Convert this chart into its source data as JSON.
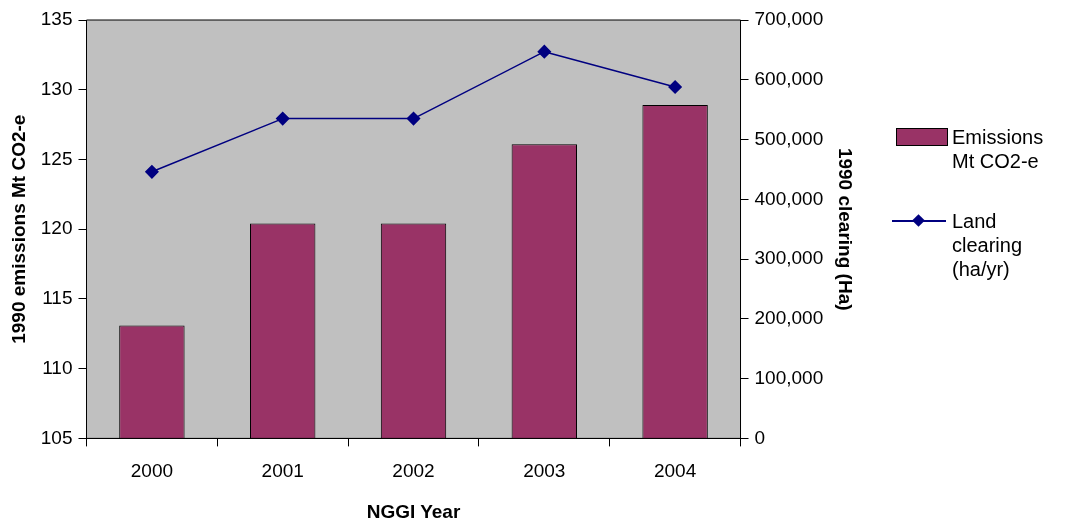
{
  "chart_data": {
    "type": "bar",
    "xlabel": "NGGI Year",
    "ylabel": "1990 emissions Mt CO2-e",
    "y2label": "1990 clearing (Ha)",
    "categories": [
      "2000",
      "2001",
      "2002",
      "2003",
      "2004"
    ],
    "series": [
      {
        "name": "Emissions Mt CO2-e",
        "color": "#993366",
        "values": [
          113.1,
          120.4,
          120.4,
          126.1,
          128.9
        ]
      },
      {
        "name": "Land clearing (ha/yr)",
        "type": "line",
        "axis": "y2",
        "color": "#000080",
        "values": [
          446000,
          535000,
          535000,
          647000,
          588000
        ]
      }
    ],
    "ylim": [
      105,
      135
    ],
    "yticks": [
      105,
      110,
      115,
      120,
      125,
      130,
      135
    ],
    "y2lim": [
      0,
      700000
    ],
    "y2ticks": [
      0,
      {
        "value": 100000,
        "label": "100,000"
      },
      {
        "value": 200000,
        "label": "200,000"
      },
      {
        "value": 300000,
        "label": "300,000"
      },
      {
        "value": 400000,
        "label": "400,000"
      },
      {
        "value": 500000,
        "label": "500,000"
      },
      {
        "value": 600000,
        "label": "600,000"
      },
      {
        "value": 700000,
        "label": "700,000"
      }
    ],
    "marker": "diamond",
    "legend": "right"
  }
}
